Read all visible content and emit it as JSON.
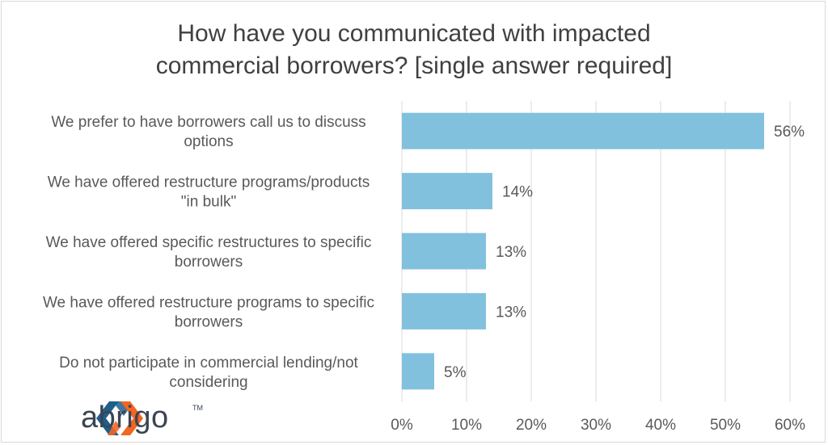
{
  "chart_data": {
    "type": "bar",
    "orientation": "horizontal",
    "title_lines": [
      "How have you communicated with impacted",
      "commercial borrowers? [single answer required]"
    ],
    "categories": [
      [
        "We prefer to have borrowers call us to discuss",
        "options"
      ],
      [
        "We have offered restructure programs/products",
        "\"in bulk\""
      ],
      [
        "We have offered specific restructures to specific",
        "borrowers"
      ],
      [
        "We have offered restructure programs to specific",
        "borrowers"
      ],
      [
        "Do not participate in commercial lending/not",
        "considering"
      ]
    ],
    "values": [
      56,
      14,
      13,
      13,
      5
    ],
    "data_labels": [
      "56%",
      "14%",
      "13%",
      "13%",
      "5%"
    ],
    "xlim": [
      0,
      60
    ],
    "x_ticks": [
      "0%",
      "10%",
      "20%",
      "30%",
      "40%",
      "50%",
      "60%"
    ],
    "grid": true,
    "bar_color": "#82c1de"
  },
  "logo": {
    "text": "abrigo",
    "tm": "TM",
    "colors": [
      "#1f5f8b",
      "#f26522"
    ]
  }
}
